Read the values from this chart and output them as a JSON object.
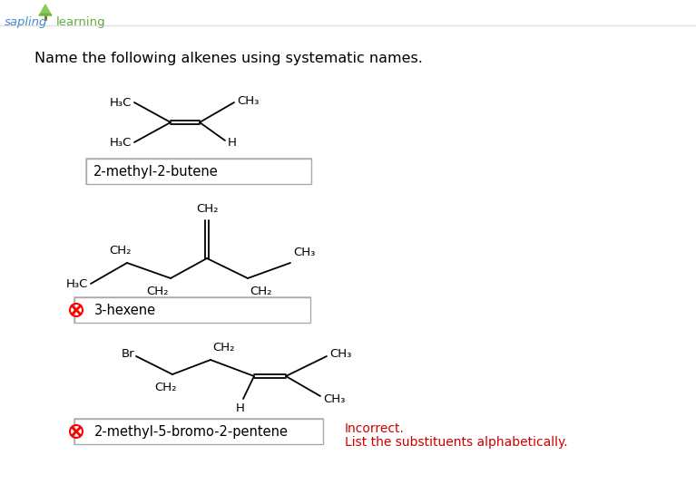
{
  "bg_color": "#ffffff",
  "title_text": "Name the following alkenes using systematic names.",
  "title_fontsize": 11.5,
  "answer1": {
    "text": "2-methyl-2-butene",
    "correct": true
  },
  "answer2": {
    "text": "3-hexene",
    "correct": false
  },
  "answer3": {
    "text": "2-methyl-5-bromo-2-pentene",
    "correct": false
  },
  "incorrect_text_1": "Incorrect.",
  "incorrect_text_2": "List the substituents alphabetically.",
  "incorrect_color": "#cc0000",
  "bond_color": "#000000",
  "text_color": "#000000",
  "sapling_blue": "#4488cc",
  "sapling_green": "#66aa44",
  "tree_green": "#66bb33"
}
